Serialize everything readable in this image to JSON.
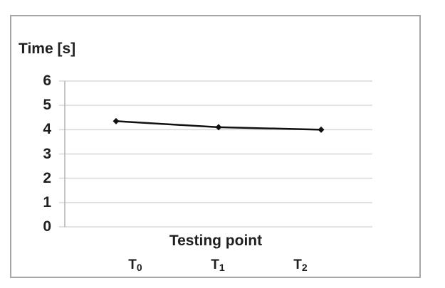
{
  "chart_data": {
    "type": "line",
    "title": "",
    "ylabel": "Time [s]",
    "xlabel": "Testing point",
    "categories": [
      {
        "base": "T",
        "sub": "0"
      },
      {
        "base": "T",
        "sub": "1"
      },
      {
        "base": "T",
        "sub": "2"
      }
    ],
    "values": [
      4.35,
      4.1,
      4.0
    ],
    "ylim": [
      0,
      6
    ],
    "yticks": [
      0,
      1,
      2,
      3,
      4,
      5,
      6
    ],
    "grid": "horizontal",
    "legend": "none",
    "marker": "diamond"
  },
  "colors": {
    "series_line": "#111111",
    "marker_fill": "#111111",
    "gridline": "#d9d9d9",
    "axis_line": "#b3b3b3",
    "frame_border": "#a6a6a6",
    "text": "#1f1f1f",
    "background": "#ffffff"
  }
}
